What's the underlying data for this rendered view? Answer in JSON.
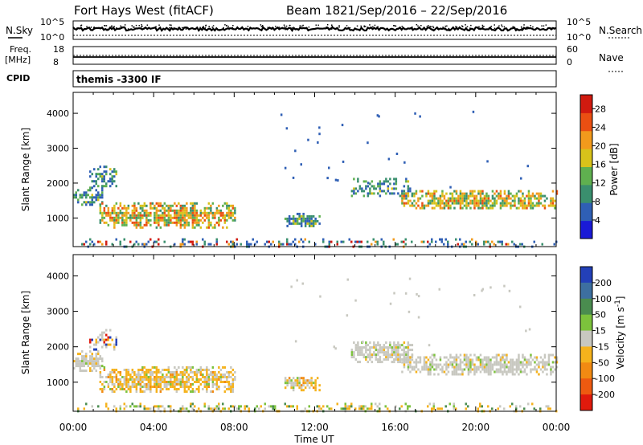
{
  "header": {
    "station": "Fort Hays West (fitACF)",
    "beam": "Beam 18",
    "date_range": "21/Sep/2016 – 22/Sep/2016",
    "cpid": "themis -3300 IF"
  },
  "top_panels": {
    "nsky_label": "N.Sky",
    "nsearch_label": "N.Search",
    "freq_label_1": "Freq.",
    "freq_label_2": "[MHz]",
    "nave_label": "Nave",
    "cpid_label": "CPID",
    "nsky_ticks": [
      "10^5",
      "10^0"
    ],
    "nsearch_ticks": [
      "10^5",
      "10^0"
    ],
    "freq_ticks": [
      "18",
      "8"
    ],
    "nave_ticks": [
      "60",
      "0"
    ]
  },
  "chart_data": [
    {
      "type": "heatmap",
      "name": "power",
      "ylabel": "Slant Range [km]",
      "xlabel": "Time UT",
      "xlim": [
        0,
        24
      ],
      "ylim": [
        180,
        4600
      ],
      "yticks": [
        1000,
        2000,
        3000,
        4000
      ],
      "colorbar": {
        "label": "Power [dB]",
        "ticks": [
          4,
          8,
          12,
          16,
          20,
          24,
          28
        ],
        "range": [
          0,
          31
        ],
        "colors": [
          "#1a1ad6",
          "#2f5fb5",
          "#3a8f6e",
          "#5fb04f",
          "#d8c21a",
          "#f29a1c",
          "#ea4f12",
          "#d11a0f"
        ]
      },
      "regions": [
        {
          "t": [
            0.0,
            1.4
          ],
          "r": [
            1350,
            1900
          ],
          "level": "low"
        },
        {
          "t": [
            0.8,
            2.1
          ],
          "r": [
            1900,
            2500
          ],
          "level": "low"
        },
        {
          "t": [
            1.3,
            8.0
          ],
          "r": [
            750,
            1450
          ],
          "level": "high"
        },
        {
          "t": [
            10.5,
            12.2
          ],
          "r": [
            800,
            1150
          ],
          "level": "mid"
        },
        {
          "t": [
            13.8,
            16.8
          ],
          "r": [
            1600,
            2150
          ],
          "level": "low"
        },
        {
          "t": [
            16.3,
            24.0
          ],
          "r": [
            1250,
            1800
          ],
          "level": "high"
        },
        {
          "t": [
            0.0,
            24.0
          ],
          "r": [
            200,
            420
          ],
          "level": "ground"
        }
      ]
    },
    {
      "type": "heatmap",
      "name": "velocity",
      "ylabel": "Slant Range [km]",
      "xlabel": "Time UT",
      "xlim": [
        0,
        24
      ],
      "ylim": [
        180,
        4600
      ],
      "yticks": [
        1000,
        2000,
        3000,
        4000
      ],
      "xticks": [
        "00:00",
        "04:00",
        "08:00",
        "12:00",
        "16:00",
        "20:00",
        "00:00"
      ],
      "colorbar": {
        "label": "Velocity [m s^-1]",
        "ticks": [
          "200",
          "100",
          "50",
          "15",
          "-15",
          "-50",
          "-100",
          "-200"
        ],
        "colors": [
          "#2340b8",
          "#3d6fa0",
          "#4a8c4f",
          "#7cc23c",
          "#c8c8c0",
          "#f5b21c",
          "#f28a12",
          "#ee5a10",
          "#e01a0c"
        ]
      },
      "regions": [
        {
          "t": [
            0.0,
            1.4
          ],
          "r": [
            1350,
            1900
          ],
          "level": "gray"
        },
        {
          "t": [
            0.8,
            2.1
          ],
          "r": [
            1900,
            2500
          ],
          "level": "mixed"
        },
        {
          "t": [
            1.3,
            8.0
          ],
          "r": [
            750,
            1450
          ],
          "level": "orange-gray"
        },
        {
          "t": [
            10.5,
            12.2
          ],
          "r": [
            800,
            1150
          ],
          "level": "orange-gray"
        },
        {
          "t": [
            13.8,
            16.8
          ],
          "r": [
            1600,
            2150
          ],
          "level": "gray"
        },
        {
          "t": [
            16.3,
            24.0
          ],
          "r": [
            1250,
            1800
          ],
          "level": "gray"
        },
        {
          "t": [
            0.0,
            24.0
          ],
          "r": [
            200,
            420
          ],
          "level": "ground"
        }
      ]
    }
  ]
}
